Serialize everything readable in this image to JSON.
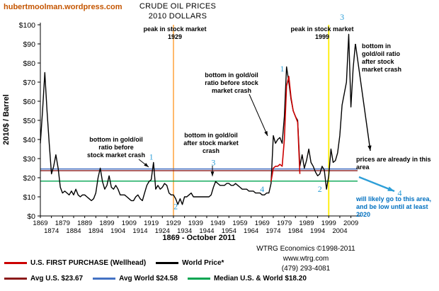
{
  "site": {
    "link_label": "hubertmoolman.wordpress.com"
  },
  "header": {
    "title": "CRUDE OIL PRICES",
    "subtitle": "2010 DOLLARS"
  },
  "colors": {
    "site_link_orange": "#c45500",
    "marker_blue": "#2e9fd8",
    "arrow_blue": "#2e9fd8",
    "forecast_text_blue": "#0070c0",
    "event_1929_orange": "#ffb35c",
    "event_1999_yellow": "#ffee00"
  },
  "legend": {
    "row1": [
      {
        "label": "U.S. FIRST PURCHASE (Wellhead)",
        "color": "#cc0000"
      },
      {
        "label": "World Price*",
        "color": "#000000"
      }
    ],
    "row2": [
      {
        "label": "Avg U.S.  $23.67",
        "color": "#8b1a1a"
      },
      {
        "label": "Avg World  $24.58",
        "color": "#4472c4"
      },
      {
        "label": "Median U.S. & World  $18.20",
        "color": "#00a550"
      }
    ]
  },
  "credits": {
    "line1": "WTRG Economics  ©1998-2011",
    "line2": "www.wtrg.com",
    "line3": "(479) 293-4081"
  },
  "chart_data": {
    "type": "line",
    "title": "CRUDE OIL PRICES 2010 DOLLARS",
    "xlabel": "1869 - October 2011",
    "ylabel": "2010$ / Barrel",
    "xlim": [
      1869,
      2012
    ],
    "ylim": [
      0,
      100
    ],
    "grid": false,
    "legend_position": "bottom",
    "y_ticks": [
      0,
      10,
      20,
      30,
      40,
      50,
      60,
      70,
      80,
      90,
      100
    ],
    "y_tick_labels": [
      "$0",
      "$10",
      "$20",
      "$30",
      "$40",
      "$50",
      "$60",
      "$70",
      "$80",
      "$90",
      "$100"
    ],
    "x_ticks": [
      1869,
      1874,
      1879,
      1884,
      1889,
      1894,
      1899,
      1904,
      1909,
      1914,
      1919,
      1924,
      1929,
      1934,
      1939,
      1944,
      1949,
      1954,
      1959,
      1964,
      1969,
      1974,
      1979,
      1984,
      1989,
      1994,
      1999,
      2004,
      2009
    ],
    "event_lines": [
      {
        "name": "peak in stock market 1929",
        "x": 1929,
        "color": "#ffb35c"
      },
      {
        "name": "peak in stock market 1999",
        "x": 1999,
        "color": "#ffee00"
      }
    ],
    "reference_lines": [
      {
        "name": "Avg U.S.",
        "value": 23.67,
        "color": "#8b1a1a"
      },
      {
        "name": "Avg World",
        "value": 24.58,
        "color": "#4472c4"
      },
      {
        "name": "Median U.S. & World",
        "value": 18.2,
        "color": "#00a550"
      }
    ],
    "series": [
      {
        "name": "World Price*",
        "color": "#000000",
        "width": 1.4,
        "points": [
          [
            1869,
            38
          ],
          [
            1870,
            55
          ],
          [
            1871,
            75
          ],
          [
            1872,
            55
          ],
          [
            1873,
            38
          ],
          [
            1874,
            22
          ],
          [
            1875,
            26
          ],
          [
            1876,
            32
          ],
          [
            1877,
            25
          ],
          [
            1878,
            15
          ],
          [
            1879,
            12
          ],
          [
            1880,
            13
          ],
          [
            1881,
            12
          ],
          [
            1882,
            11
          ],
          [
            1883,
            13
          ],
          [
            1884,
            11
          ],
          [
            1885,
            14
          ],
          [
            1886,
            11
          ],
          [
            1887,
            10
          ],
          [
            1888,
            11
          ],
          [
            1889,
            11
          ],
          [
            1890,
            10
          ],
          [
            1891,
            9
          ],
          [
            1892,
            8
          ],
          [
            1893,
            9
          ],
          [
            1894,
            12
          ],
          [
            1895,
            20
          ],
          [
            1896,
            25
          ],
          [
            1897,
            18
          ],
          [
            1898,
            14
          ],
          [
            1899,
            16
          ],
          [
            1900,
            21
          ],
          [
            1901,
            15
          ],
          [
            1902,
            14
          ],
          [
            1903,
            16
          ],
          [
            1904,
            14
          ],
          [
            1905,
            11
          ],
          [
            1906,
            11
          ],
          [
            1907,
            11
          ],
          [
            1908,
            10
          ],
          [
            1909,
            9
          ],
          [
            1910,
            8
          ],
          [
            1911,
            8
          ],
          [
            1912,
            10
          ],
          [
            1913,
            11
          ],
          [
            1914,
            9
          ],
          [
            1915,
            8
          ],
          [
            1916,
            12
          ],
          [
            1917,
            16
          ],
          [
            1918,
            18
          ],
          [
            1919,
            19
          ],
          [
            1920,
            28
          ],
          [
            1921,
            14
          ],
          [
            1922,
            16
          ],
          [
            1923,
            14
          ],
          [
            1924,
            15
          ],
          [
            1925,
            17
          ],
          [
            1926,
            16
          ],
          [
            1927,
            12
          ],
          [
            1928,
            11
          ],
          [
            1929,
            11
          ],
          [
            1930,
            9
          ],
          [
            1931,
            6
          ],
          [
            1932,
            9
          ],
          [
            1933,
            6
          ],
          [
            1934,
            10
          ],
          [
            1935,
            10
          ],
          [
            1936,
            11
          ],
          [
            1937,
            12
          ],
          [
            1938,
            10
          ],
          [
            1939,
            10
          ],
          [
            1940,
            10
          ],
          [
            1941,
            10
          ],
          [
            1942,
            10
          ],
          [
            1943,
            10
          ],
          [
            1944,
            10
          ],
          [
            1945,
            10
          ],
          [
            1946,
            11
          ],
          [
            1947,
            15
          ],
          [
            1948,
            18
          ],
          [
            1949,
            17
          ],
          [
            1950,
            16
          ],
          [
            1951,
            16
          ],
          [
            1952,
            16
          ],
          [
            1953,
            17
          ],
          [
            1954,
            17
          ],
          [
            1955,
            16
          ],
          [
            1956,
            16
          ],
          [
            1957,
            17
          ],
          [
            1958,
            16
          ],
          [
            1959,
            15
          ],
          [
            1960,
            14
          ],
          [
            1961,
            14
          ],
          [
            1962,
            14
          ],
          [
            1963,
            13
          ],
          [
            1964,
            13
          ],
          [
            1965,
            13
          ],
          [
            1966,
            12
          ],
          [
            1967,
            12
          ],
          [
            1968,
            12
          ],
          [
            1969,
            11
          ],
          [
            1970,
            11
          ],
          [
            1971,
            12
          ],
          [
            1972,
            12
          ],
          [
            1973,
            17
          ],
          [
            1974,
            42
          ],
          [
            1975,
            38
          ],
          [
            1976,
            40
          ],
          [
            1977,
            41
          ],
          [
            1978,
            38
          ],
          [
            1979,
            52
          ],
          [
            1980,
            78
          ],
          [
            1981,
            70
          ],
          [
            1982,
            61
          ],
          [
            1983,
            55
          ],
          [
            1984,
            52
          ],
          [
            1985,
            50
          ],
          [
            1986,
            26
          ],
          [
            1987,
            32
          ],
          [
            1988,
            25
          ],
          [
            1989,
            29
          ],
          [
            1990,
            35
          ],
          [
            1991,
            28
          ],
          [
            1992,
            26
          ],
          [
            1993,
            23
          ],
          [
            1994,
            21
          ],
          [
            1995,
            22
          ],
          [
            1996,
            26
          ],
          [
            1997,
            24
          ],
          [
            1998,
            14
          ],
          [
            1999,
            21
          ],
          [
            2000,
            35
          ],
          [
            2001,
            28
          ],
          [
            2002,
            29
          ],
          [
            2003,
            33
          ],
          [
            2004,
            42
          ],
          [
            2005,
            58
          ],
          [
            2006,
            64
          ],
          [
            2007,
            70
          ],
          [
            2008,
            95
          ],
          [
            2009,
            57
          ],
          [
            2010,
            77
          ],
          [
            2011,
            90
          ]
        ]
      },
      {
        "name": "U.S. FIRST PURCHASE (Wellhead)",
        "color": "#cc0000",
        "width": 1.6,
        "points": [
          [
            1973,
            18
          ],
          [
            1974,
            25
          ],
          [
            1975,
            26
          ],
          [
            1976,
            26
          ],
          [
            1977,
            27
          ],
          [
            1978,
            26
          ],
          [
            1979,
            40
          ],
          [
            1980,
            68
          ],
          [
            1981,
            73
          ],
          [
            1982,
            62
          ],
          [
            1983,
            55
          ],
          [
            1984,
            52
          ],
          [
            1985,
            49
          ],
          [
            1986,
            22
          ]
        ]
      }
    ],
    "markers": [
      {
        "label": "1",
        "year": 1919,
        "value": 31
      },
      {
        "label": "2",
        "year": 1930,
        "value": 5
      },
      {
        "label": "3",
        "year": 1947,
        "value": 28
      },
      {
        "label": "4",
        "year": 1969,
        "value": 14
      },
      {
        "label": "1",
        "year": 1978,
        "value": 77
      },
      {
        "label": "2",
        "year": 1995,
        "value": 14
      },
      {
        "label": "3",
        "year": 2005,
        "value": 104
      },
      {
        "label": "4",
        "year": 2031,
        "value": 12
      }
    ],
    "notes": {
      "peak_1929": [
        "peak in stock market",
        "1929"
      ],
      "peak_1999": [
        "peak in stock market",
        "1999"
      ],
      "bottom_before_1929": [
        "bottom in gold/oil",
        "ratio   before",
        "stock market crash"
      ],
      "bottom_after_1929": [
        "bottom in gold/oil",
        "after stock market",
        "crash"
      ],
      "bottom_before_1999": [
        "bottom in gold/oil",
        "ratio  before stock",
        "market crash"
      ],
      "bottom_after_1999": [
        "bottom in",
        "gold/oil ratio",
        "after stock",
        "market crash"
      ],
      "prices_area": [
        "prices are already in this",
        "area"
      ],
      "forecast": [
        "will likely go to this area,",
        "and be low until at least",
        "2020"
      ]
    }
  }
}
